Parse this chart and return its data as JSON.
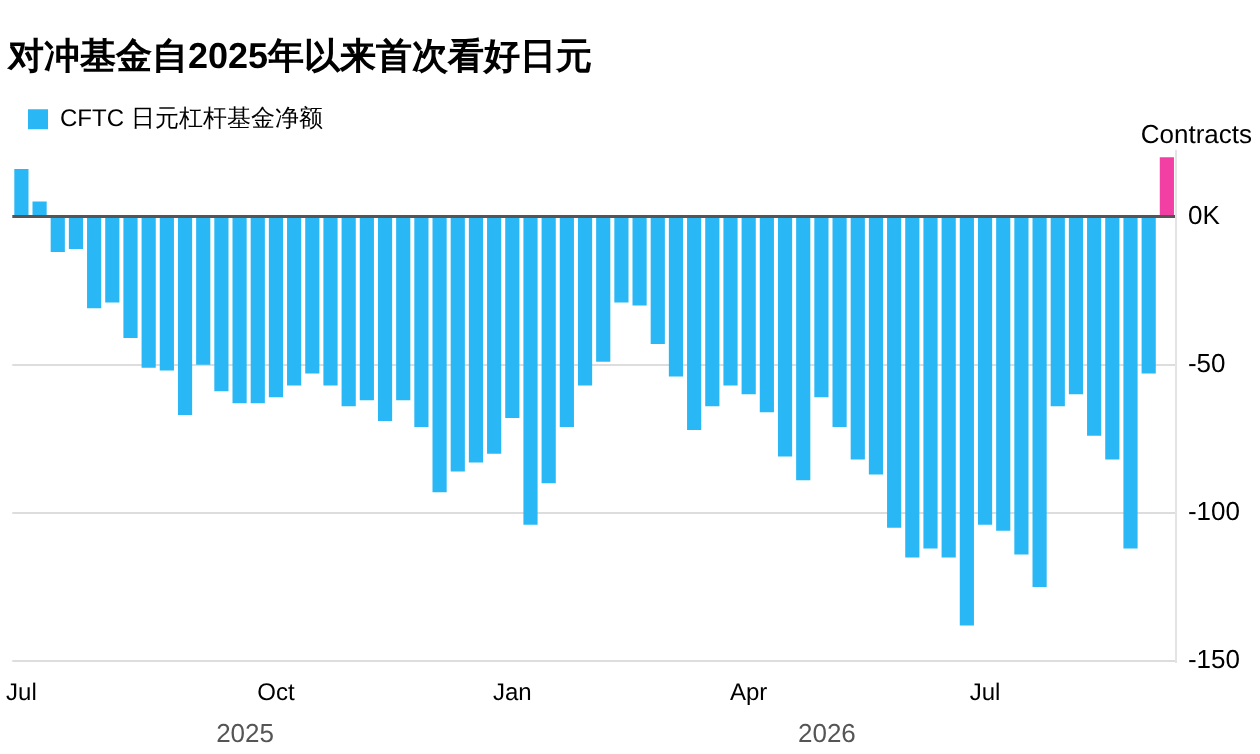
{
  "chart_data": {
    "type": "bar",
    "title": "对冲基金自2025年以来首次看好日元",
    "ylabel": "Contracts",
    "categories": [
      "Jul",
      null,
      null,
      null,
      null,
      null,
      null,
      null,
      null,
      null,
      null,
      null,
      null,
      null,
      "Oct",
      null,
      null,
      null,
      null,
      null,
      null,
      null,
      null,
      null,
      null,
      null,
      null,
      "Jan",
      null,
      null,
      null,
      null,
      null,
      null,
      null,
      null,
      null,
      null,
      null,
      null,
      "Apr",
      null,
      null,
      null,
      null,
      null,
      null,
      null,
      null,
      null,
      null,
      null,
      null,
      "Jul",
      null,
      null,
      null,
      null,
      null,
      null,
      null,
      null,
      null,
      null
    ],
    "series": [
      {
        "name": "CFTC 日元杠杆基金净额",
        "color": "#29b8f5",
        "colors": [
          "#29b8f5",
          "#29b8f5",
          "#29b8f5",
          "#29b8f5",
          "#29b8f5",
          "#29b8f5",
          "#29b8f5",
          "#29b8f5",
          "#29b8f5",
          "#29b8f5",
          "#29b8f5",
          "#29b8f5",
          "#29b8f5",
          "#29b8f5",
          "#29b8f5",
          "#29b8f5",
          "#29b8f5",
          "#29b8f5",
          "#29b8f5",
          "#29b8f5",
          "#29b8f5",
          "#29b8f5",
          "#29b8f5",
          "#29b8f5",
          "#29b8f5",
          "#29b8f5",
          "#29b8f5",
          "#29b8f5",
          "#29b8f5",
          "#29b8f5",
          "#29b8f5",
          "#29b8f5",
          "#29b8f5",
          "#29b8f5",
          "#29b8f5",
          "#29b8f5",
          "#29b8f5",
          "#29b8f5",
          "#29b8f5",
          "#29b8f5",
          "#29b8f5",
          "#29b8f5",
          "#29b8f5",
          "#29b8f5",
          "#29b8f5",
          "#29b8f5",
          "#29b8f5",
          "#29b8f5",
          "#29b8f5",
          "#29b8f5",
          "#29b8f5",
          "#29b8f5",
          "#29b8f5",
          "#29b8f5",
          "#29b8f5",
          "#29b8f5",
          "#29b8f5",
          "#29b8f5",
          "#29b8f5",
          "#29b8f5",
          "#29b8f5",
          "#29b8f5",
          "#29b8f5",
          "#f23fa3"
        ],
        "values": [
          16,
          5,
          -12,
          -11,
          -31,
          -29,
          -41,
          -51,
          -52,
          -67,
          -50,
          -59,
          -63,
          -63,
          -61,
          -57,
          -53,
          -57,
          -64,
          -62,
          -69,
          -62,
          -71,
          -93,
          -86,
          -83,
          -80,
          -68,
          -104,
          -90,
          -71,
          -57,
          -49,
          -29,
          -30,
          -43,
          -54,
          -72,
          -64,
          -57,
          -60,
          -66,
          -81,
          -89,
          -61,
          -71,
          -82,
          -87,
          -105,
          -115,
          -112,
          -115,
          -138,
          -104,
          -106,
          -114,
          -125,
          -64,
          -60,
          -74,
          -82,
          -112,
          -53,
          20
        ]
      }
    ],
    "ylim": [
      -150,
      22
    ],
    "yticks": [
      {
        "value": 0,
        "label": "0K"
      },
      -50,
      -100,
      -150
    ],
    "grid": "y",
    "legend": "top left",
    "annotations": [
      "2025",
      "2026"
    ]
  }
}
